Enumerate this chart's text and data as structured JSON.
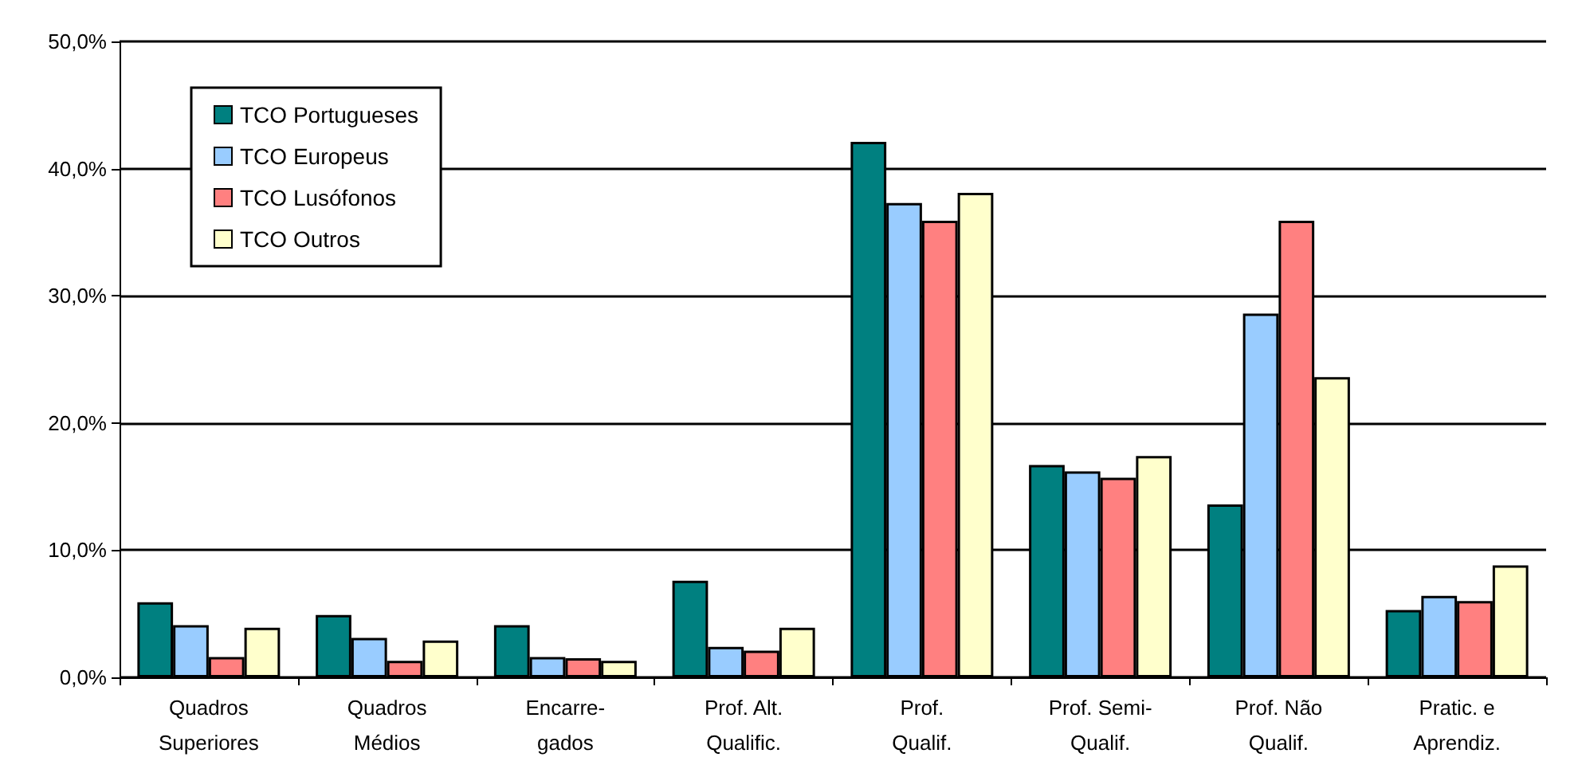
{
  "chart_data": {
    "type": "bar",
    "categories": [
      "Quadros\nSuperiores",
      "Quadros\nMédios",
      "Encarre-\ngados",
      "Prof. Alt.\nQualific.",
      "Prof.\nQualif.",
      "Prof. Semi-\nQualif.",
      "Prof. Não\nQualif.",
      "Pratic. e\nAprendiz."
    ],
    "series": [
      {
        "name": "TCO Portugueses",
        "color": "#008080",
        "values": [
          5.9,
          4.9,
          4.1,
          7.6,
          42.1,
          16.7,
          13.6,
          5.3
        ]
      },
      {
        "name": "TCO Europeus",
        "color": "#99ccff",
        "values": [
          4.1,
          3.1,
          1.6,
          2.4,
          37.3,
          16.2,
          28.6,
          6.4
        ]
      },
      {
        "name": "TCO Lusófonos",
        "color": "#ff8080",
        "values": [
          1.6,
          1.3,
          1.5,
          2.1,
          35.9,
          15.7,
          35.9,
          6.0
        ]
      },
      {
        "name": "TCO Outros",
        "color": "#ffffcc",
        "values": [
          3.9,
          2.9,
          1.3,
          3.9,
          38.1,
          17.4,
          23.6,
          8.8
        ]
      }
    ],
    "ylim": [
      0,
      50
    ],
    "yticks": [
      {
        "value": 0,
        "label": "0,0%"
      },
      {
        "value": 10,
        "label": "10,0%"
      },
      {
        "value": 20,
        "label": "20,0%"
      },
      {
        "value": 30,
        "label": "30,0%"
      },
      {
        "value": 40,
        "label": "40,0%"
      },
      {
        "value": 50,
        "label": "50,0%"
      }
    ],
    "grid": "y",
    "legend": "top left"
  }
}
